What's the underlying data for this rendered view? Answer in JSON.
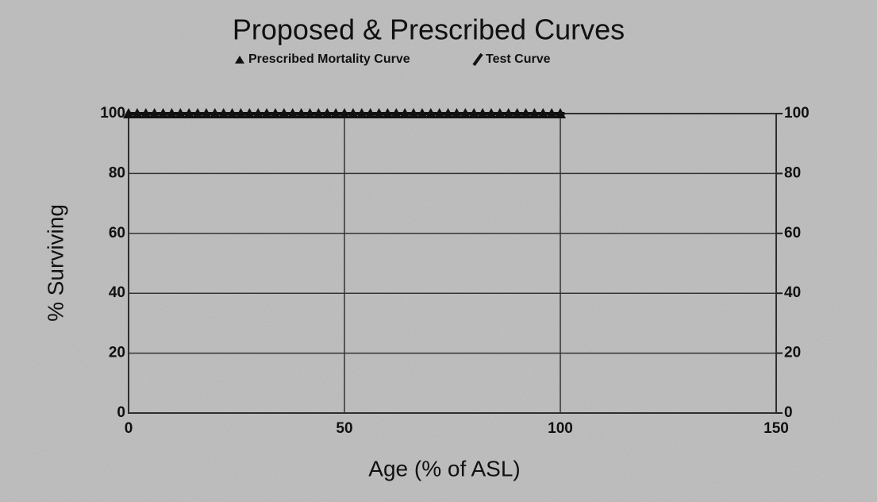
{
  "chart_data": {
    "type": "line",
    "title": "Proposed & Prescribed Curves",
    "xlabel": "Age (% of ASL)",
    "ylabel": "% Surviving",
    "xlim": [
      0,
      150
    ],
    "xticks": [
      0,
      50,
      100,
      150
    ],
    "ylim": [
      0,
      100
    ],
    "yticks": [
      0,
      20,
      40,
      60,
      80,
      100
    ],
    "y2lim": [
      0,
      100
    ],
    "y2ticks": [
      0,
      20,
      40,
      60,
      80,
      100
    ],
    "grid": true,
    "series": [
      {
        "name": "Prescribed Mortality Curve",
        "color": "#111111",
        "marker": "triangle",
        "x": [
          0,
          2,
          4,
          6,
          8,
          10,
          12,
          14,
          16,
          18,
          20,
          22,
          24,
          26,
          28,
          30,
          32,
          34,
          36,
          38,
          40,
          42,
          44,
          46,
          48,
          50,
          52,
          54,
          56,
          58,
          60,
          62,
          64,
          66,
          68,
          70,
          72,
          74,
          76,
          78,
          80,
          82,
          84,
          86,
          88,
          90,
          92,
          94,
          96,
          98,
          100
        ],
        "values": [
          100,
          100,
          100,
          100,
          100,
          100,
          100,
          100,
          100,
          100,
          100,
          100,
          100,
          100,
          100,
          100,
          100,
          100,
          100,
          100,
          100,
          100,
          100,
          100,
          100,
          100,
          100,
          100,
          100,
          100,
          100,
          100,
          100,
          100,
          100,
          100,
          100,
          100,
          100,
          100,
          100,
          100,
          100,
          100,
          100,
          100,
          100,
          100,
          100,
          100,
          100
        ]
      },
      {
        "name": "Test Curve",
        "color": "#111111",
        "marker": "none",
        "x": [
          0,
          101
        ],
        "values": [
          100,
          100
        ]
      }
    ]
  }
}
